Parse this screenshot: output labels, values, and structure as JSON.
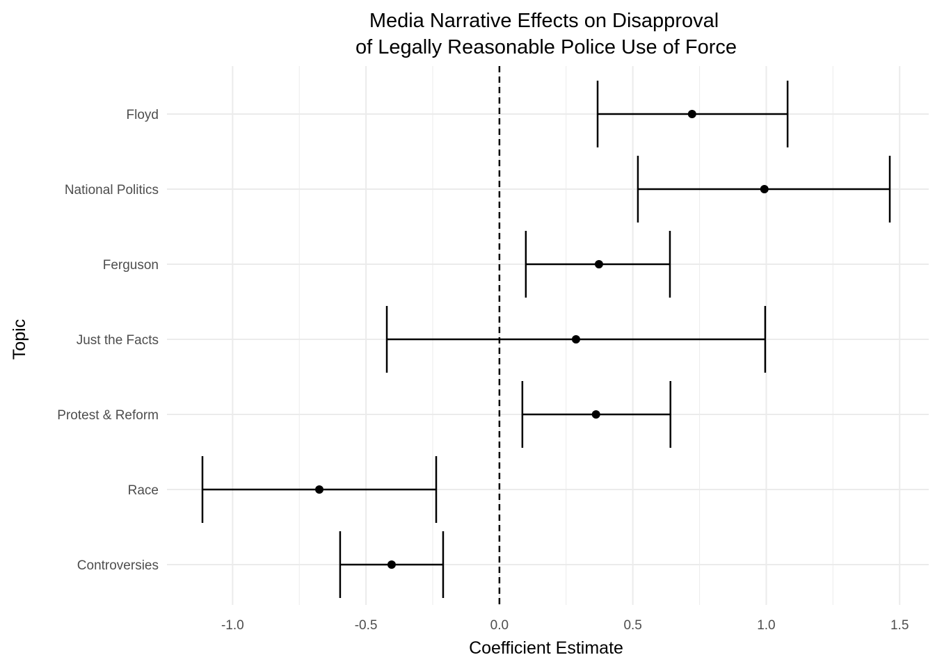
{
  "chart_data": {
    "type": "errorbar",
    "title_line1": "Media Narrative Effects on Disapproval",
    "title_line2": "of Legally Reasonable Police Use of Force",
    "xlabel": "Coefficient Estimate",
    "ylabel": "Topic",
    "xlim": [
      -1.246,
      1.609
    ],
    "xticks": [
      -1.0,
      -0.5,
      0.0,
      0.5,
      1.0,
      1.5
    ],
    "xtick_labels": [
      "-1.0",
      "-0.5",
      "0.0",
      "0.5",
      "1.0",
      "1.5"
    ],
    "reference_line": 0.0,
    "grid": true,
    "colors": {
      "mark": "#000000",
      "grid": "#ebebeb",
      "text": "#4d4d4d"
    },
    "categories": [
      "Floyd",
      "National Politics",
      "Ferguson",
      "Just the Facts",
      "Protest & Reform",
      "Race",
      "Controversies"
    ],
    "estimates": [
      0.722,
      0.993,
      0.373,
      0.287,
      0.362,
      -0.675,
      -0.404
    ],
    "lower": [
      0.368,
      0.519,
      0.099,
      -0.422,
      0.086,
      -1.113,
      -0.597
    ],
    "upper": [
      1.08,
      1.463,
      0.639,
      0.996,
      0.641,
      -0.237,
      -0.211
    ]
  }
}
